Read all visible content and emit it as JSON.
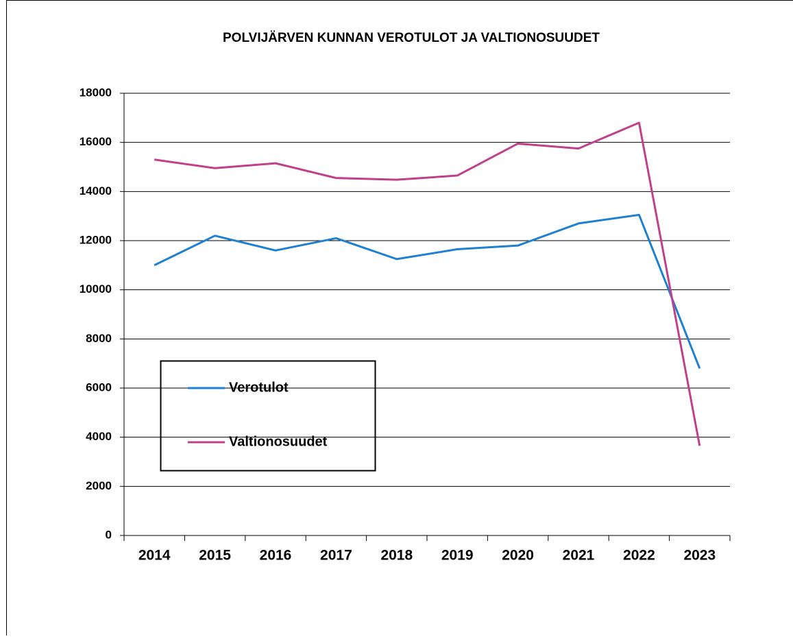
{
  "chart_data": {
    "type": "line",
    "title": "POLVIJÄRVEN KUNNAN VEROTULOT JA VALTIONOSUUDET",
    "categories": [
      "2014",
      "2015",
      "2016",
      "2017",
      "2018",
      "2019",
      "2020",
      "2021",
      "2022",
      "2023"
    ],
    "series": [
      {
        "name": "Verotulot",
        "color": "#2080d0",
        "values": [
          11000,
          12200,
          11600,
          12100,
          11250,
          11650,
          11800,
          12700,
          13050,
          6800
        ]
      },
      {
        "name": "Valtionosuudet",
        "color": "#c0408a",
        "values": [
          15300,
          14950,
          15150,
          14550,
          14480,
          14650,
          15950,
          15750,
          16800,
          3650
        ]
      }
    ],
    "ylim": [
      0,
      18000
    ],
    "yticks": [
      0,
      2000,
      4000,
      6000,
      8000,
      10000,
      12000,
      14000,
      16000,
      18000
    ],
    "grid": true
  }
}
